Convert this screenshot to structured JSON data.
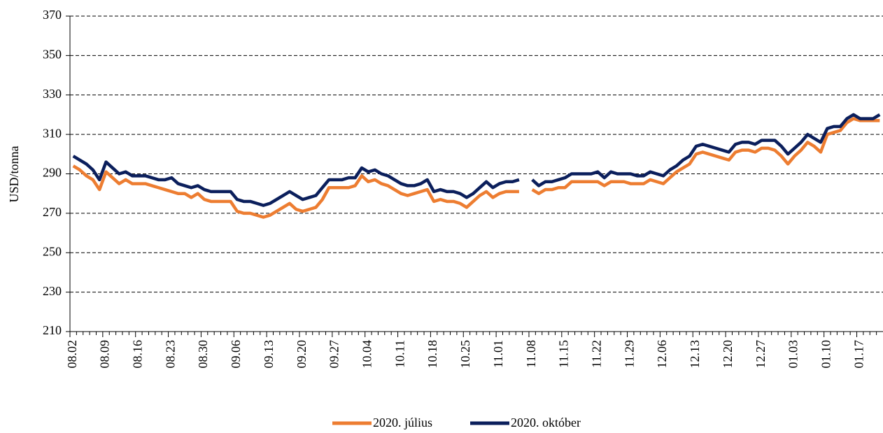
{
  "chart_data": {
    "type": "line",
    "y_label": "USD/tonna",
    "categories": [
      "08.02",
      null,
      null,
      null,
      null,
      "08.09",
      null,
      null,
      null,
      null,
      "08.16",
      null,
      null,
      null,
      null,
      "08.23",
      null,
      null,
      null,
      null,
      "08.30",
      null,
      null,
      null,
      null,
      "09.06",
      null,
      null,
      null,
      null,
      "09.13",
      null,
      null,
      null,
      null,
      "09.20",
      null,
      null,
      null,
      null,
      "09.27",
      null,
      null,
      null,
      null,
      "10.04",
      null,
      null,
      null,
      null,
      "10.11",
      null,
      null,
      null,
      null,
      "10.18",
      null,
      null,
      null,
      null,
      "10.25",
      null,
      null,
      null,
      null,
      "11.01",
      null,
      null,
      null,
      null,
      "11.08",
      null,
      null,
      null,
      null,
      "11.15",
      null,
      null,
      null,
      null,
      "11.22",
      null,
      null,
      null,
      null,
      "11.29",
      null,
      null,
      null,
      null,
      "12.06",
      null,
      null,
      null,
      null,
      "12.13",
      null,
      null,
      null,
      null,
      "12.20",
      null,
      null,
      null,
      null,
      "12.27",
      null,
      null,
      null,
      null,
      "01.03",
      null,
      null,
      null,
      null,
      "01.10",
      null,
      null,
      null,
      null,
      "01.17",
      null,
      null,
      null
    ],
    "series": [
      {
        "name": "2020. július",
        "color": "#ED7D31",
        "values": [
          294,
          292,
          289,
          287,
          282,
          291,
          288,
          285,
          287,
          285,
          285,
          285,
          284,
          283,
          282,
          281,
          280,
          280,
          278,
          280,
          277,
          276,
          276,
          276,
          276,
          271,
          270,
          270,
          269,
          268,
          269,
          271,
          273,
          275,
          272,
          271,
          272,
          273,
          277,
          283,
          283,
          283,
          283,
          284,
          289,
          286,
          287,
          285,
          284,
          282,
          280,
          279,
          280,
          281,
          282,
          276,
          277,
          276,
          276,
          275,
          273,
          276,
          279,
          281,
          278,
          280,
          281,
          281,
          281,
          null,
          282,
          280,
          282,
          282,
          283,
          283,
          286,
          286,
          286,
          286,
          286,
          284,
          286,
          286,
          286,
          285,
          285,
          285,
          287,
          286,
          285,
          288,
          291,
          293,
          295,
          300,
          301,
          300,
          299,
          298,
          297,
          301,
          302,
          302,
          301,
          303,
          303,
          302,
          299,
          295,
          299,
          302,
          306,
          304,
          301,
          310,
          311,
          312,
          316,
          318,
          317,
          317,
          317,
          317
        ]
      },
      {
        "name": "2020. október",
        "color": "#0B1F5C",
        "values": [
          299,
          297,
          295,
          292,
          287,
          296,
          293,
          290,
          291,
          289,
          289,
          289,
          288,
          287,
          287,
          288,
          285,
          284,
          283,
          284,
          282,
          281,
          281,
          281,
          281,
          277,
          276,
          276,
          275,
          274,
          275,
          277,
          279,
          281,
          279,
          277,
          278,
          279,
          283,
          287,
          287,
          287,
          288,
          288,
          293,
          291,
          292,
          290,
          289,
          287,
          285,
          284,
          284,
          285,
          287,
          281,
          282,
          281,
          281,
          280,
          278,
          280,
          283,
          286,
          283,
          285,
          286,
          286,
          287,
          null,
          287,
          284,
          286,
          286,
          287,
          288,
          290,
          290,
          290,
          290,
          291,
          288,
          291,
          290,
          290,
          290,
          289,
          289,
          291,
          290,
          289,
          292,
          294,
          297,
          299,
          304,
          305,
          304,
          303,
          302,
          301,
          305,
          306,
          306,
          305,
          307,
          307,
          307,
          304,
          300,
          303,
          306,
          310,
          308,
          306,
          313,
          314,
          314,
          318,
          320,
          318,
          318,
          318,
          320
        ]
      }
    ],
    "ylim": [
      210,
      370
    ],
    "yticks": [
      210,
      230,
      250,
      270,
      290,
      310,
      330,
      350,
      370
    ],
    "grid": true,
    "legend": "bottom"
  }
}
